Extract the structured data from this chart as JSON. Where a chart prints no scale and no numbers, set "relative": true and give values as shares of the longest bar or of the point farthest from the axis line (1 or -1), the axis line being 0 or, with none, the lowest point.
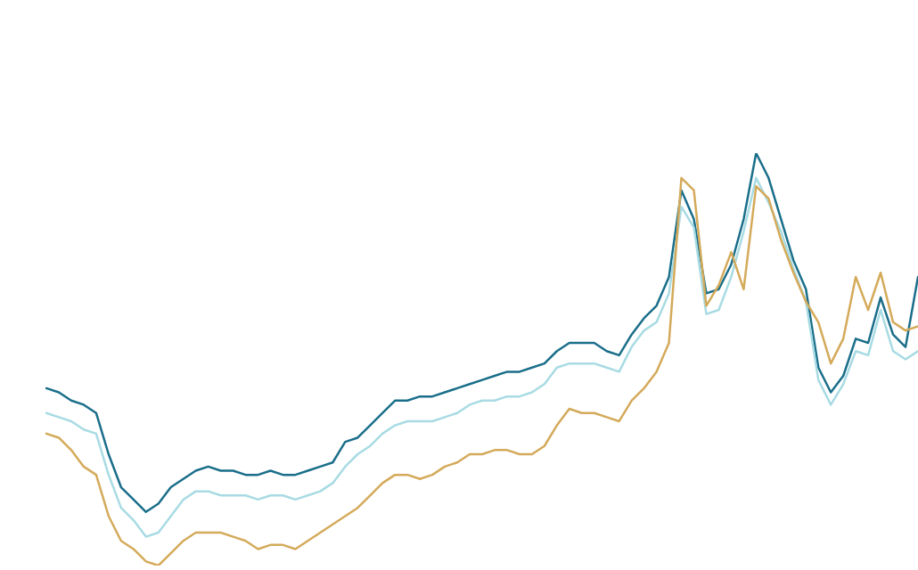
{
  "chart_data": {
    "type": "line",
    "relative": true,
    "marker": "none",
    "line_style": "solid",
    "legend": false,
    "categories": [
      null,
      null,
      null,
      null,
      null,
      null,
      null,
      null,
      null,
      null,
      null,
      null,
      null,
      null,
      null,
      null,
      null,
      null,
      null,
      null,
      null,
      null,
      null,
      null,
      null,
      null,
      null,
      null,
      null,
      null,
      null,
      null,
      null,
      null,
      null,
      null,
      null,
      null,
      null,
      null,
      null,
      null,
      null,
      null,
      null,
      null,
      null,
      null,
      null,
      null,
      null,
      null,
      null,
      null,
      null,
      null,
      null,
      null,
      null,
      null,
      null,
      null,
      null,
      null,
      null,
      null,
      null,
      null,
      null,
      null,
      null
    ],
    "series": [
      {
        "color": "#d4aa5a",
        "values": [
          0.32,
          0.31,
          0.28,
          0.24,
          0.22,
          0.12,
          0.06,
          0.04,
          0.01,
          0,
          0.03,
          0.06,
          0.08,
          0.08,
          0.08,
          0.07,
          0.06,
          0.04,
          0.05,
          0.05,
          0.04,
          0.06,
          0.08,
          0.1,
          0.12,
          0.14,
          0.17,
          0.2,
          0.22,
          0.22,
          0.21,
          0.22,
          0.24,
          0.25,
          0.27,
          0.27,
          0.28,
          0.28,
          0.27,
          0.27,
          0.29,
          0.34,
          0.38,
          0.37,
          0.37,
          0.36,
          0.35,
          0.4,
          0.43,
          0.47,
          0.54,
          0.94,
          0.91,
          0.63,
          0.68,
          0.76,
          0.67,
          0.92,
          0.89,
          0.79,
          0.71,
          0.64,
          0.59,
          0.49,
          0.55,
          0.7,
          0.62,
          0.71,
          0.59,
          0.57,
          0.58
        ]
      },
      {
        "color": "#a8dbe3",
        "values": [
          0.37,
          0.36,
          0.35,
          0.33,
          0.32,
          0.22,
          0.14,
          0.11,
          0.07,
          0.08,
          0.12,
          0.16,
          0.18,
          0.18,
          0.17,
          0.17,
          0.17,
          0.16,
          0.17,
          0.17,
          0.16,
          0.17,
          0.18,
          0.2,
          0.24,
          0.27,
          0.29,
          0.32,
          0.34,
          0.35,
          0.35,
          0.35,
          0.36,
          0.37,
          0.39,
          0.4,
          0.4,
          0.41,
          0.41,
          0.42,
          0.44,
          0.48,
          0.49,
          0.49,
          0.49,
          0.48,
          0.47,
          0.53,
          0.57,
          0.59,
          0.66,
          0.87,
          0.82,
          0.61,
          0.62,
          0.7,
          0.81,
          0.94,
          0.88,
          0.81,
          0.72,
          0.64,
          0.45,
          0.39,
          0.44,
          0.52,
          0.51,
          0.62,
          0.52,
          0.5,
          0.52
        ]
      },
      {
        "color": "#1a6e8a",
        "values": [
          0.43,
          0.42,
          0.4,
          0.39,
          0.37,
          0.27,
          0.19,
          0.16,
          0.13,
          0.15,
          0.19,
          0.21,
          0.23,
          0.24,
          0.23,
          0.23,
          0.22,
          0.22,
          0.23,
          0.22,
          0.22,
          0.23,
          0.24,
          0.25,
          0.3,
          0.31,
          0.34,
          0.37,
          0.4,
          0.4,
          0.41,
          0.41,
          0.42,
          0.43,
          0.44,
          0.45,
          0.46,
          0.47,
          0.47,
          0.48,
          0.49,
          0.52,
          0.54,
          0.54,
          0.54,
          0.52,
          0.51,
          0.56,
          0.6,
          0.63,
          0.7,
          0.91,
          0.84,
          0.66,
          0.67,
          0.73,
          0.84,
          1,
          0.94,
          0.84,
          0.74,
          0.67,
          0.48,
          0.42,
          0.46,
          0.55,
          0.54,
          0.65,
          0.56,
          0.53,
          0.7
        ]
      }
    ]
  }
}
